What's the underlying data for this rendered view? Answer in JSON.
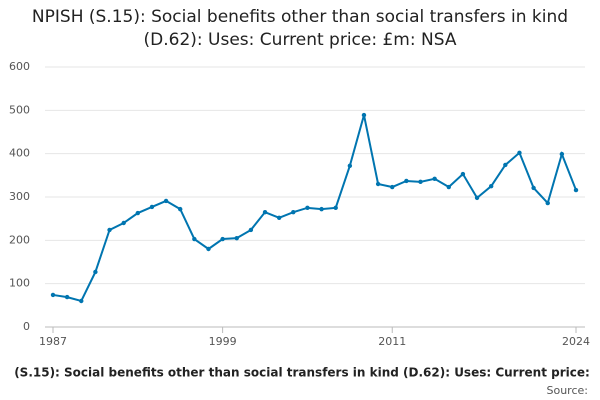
{
  "chart_data": {
    "type": "line",
    "title": "NPISH (S.15): Social benefits other than social transfers in kind (D.62): Uses: Current price: £m: NSA",
    "x": [
      1987,
      1988,
      1989,
      1990,
      1991,
      1992,
      1993,
      1994,
      1995,
      1996,
      1997,
      1998,
      1999,
      2000,
      2001,
      2002,
      2003,
      2004,
      2005,
      2006,
      2007,
      2008,
      2009,
      2010,
      2011,
      2012,
      2013,
      2014,
      2015,
      2016,
      2017,
      2018,
      2019,
      2020,
      2021,
      2022,
      2023,
      2024
    ],
    "series": [
      {
        "name": "(S.15): Social benefits other than social transfers in kind (D.62): Uses: Current price:",
        "color": "#0075b0",
        "values": [
          74,
          69,
          60,
          127,
          224,
          240,
          263,
          277,
          291,
          272,
          203,
          180,
          203,
          205,
          224,
          265,
          252,
          265,
          275,
          272,
          275,
          372,
          489,
          330,
          323,
          337,
          335,
          342,
          323,
          353,
          298,
          325,
          374,
          402,
          321,
          286,
          399,
          316
        ]
      }
    ],
    "xlim": [
      1987,
      2024
    ],
    "xticks": [
      1987,
      1999,
      2011,
      2024
    ],
    "ylim": [
      0,
      600
    ],
    "yticks": [
      0,
      100,
      200,
      300,
      400,
      500,
      600
    ],
    "grid": true,
    "source": "Source:"
  }
}
